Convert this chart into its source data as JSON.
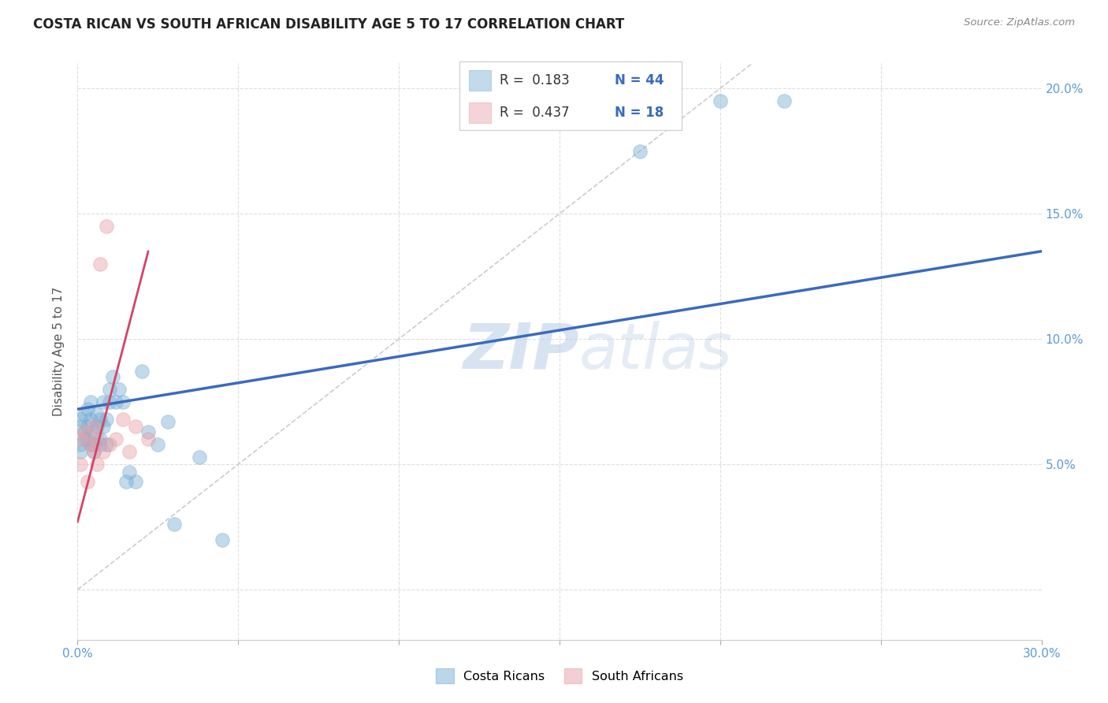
{
  "title": "COSTA RICAN VS SOUTH AFRICAN DISABILITY AGE 5 TO 17 CORRELATION CHART",
  "source": "Source: ZipAtlas.com",
  "ylabel": "Disability Age 5 to 17",
  "xlim": [
    0.0,
    0.3
  ],
  "ylim": [
    -0.02,
    0.21
  ],
  "xticks": [
    0.0,
    0.05,
    0.1,
    0.15,
    0.2,
    0.25,
    0.3
  ],
  "yticks": [
    0.0,
    0.05,
    0.1,
    0.15,
    0.2
  ],
  "blue_color": "#7bafd4",
  "pink_color": "#e8a0a8",
  "blue_line_color": "#3a6bbc",
  "pink_line_color": "#d44466",
  "diagonal_color": "#cccccc",
  "watermark_zip": "ZIP",
  "watermark_atlas": "atlas",
  "blue_line_x0": 0.0,
  "blue_line_y0": 0.072,
  "blue_line_x1": 0.3,
  "blue_line_y1": 0.135,
  "pink_line_x0": 0.0,
  "pink_line_y0": 0.027,
  "pink_line_x1": 0.022,
  "pink_line_y1": 0.135,
  "costa_rican_x": [
    0.001,
    0.001,
    0.001,
    0.001,
    0.002,
    0.002,
    0.002,
    0.003,
    0.003,
    0.003,
    0.004,
    0.004,
    0.004,
    0.005,
    0.005,
    0.005,
    0.006,
    0.006,
    0.007,
    0.007,
    0.007,
    0.008,
    0.008,
    0.009,
    0.009,
    0.01,
    0.01,
    0.011,
    0.012,
    0.013,
    0.014,
    0.015,
    0.016,
    0.018,
    0.02,
    0.022,
    0.025,
    0.028,
    0.03,
    0.038,
    0.045,
    0.2,
    0.175,
    0.22
  ],
  "costa_rican_y": [
    0.065,
    0.068,
    0.058,
    0.055,
    0.07,
    0.063,
    0.06,
    0.072,
    0.065,
    0.06,
    0.068,
    0.058,
    0.075,
    0.063,
    0.058,
    0.055,
    0.07,
    0.065,
    0.068,
    0.06,
    0.058,
    0.075,
    0.065,
    0.058,
    0.068,
    0.08,
    0.075,
    0.085,
    0.075,
    0.08,
    0.075,
    0.043,
    0.047,
    0.043,
    0.087,
    0.063,
    0.058,
    0.067,
    0.026,
    0.053,
    0.02,
    0.195,
    0.175,
    0.195
  ],
  "south_african_x": [
    0.001,
    0.001,
    0.002,
    0.003,
    0.004,
    0.005,
    0.005,
    0.006,
    0.006,
    0.007,
    0.008,
    0.009,
    0.01,
    0.012,
    0.014,
    0.016,
    0.018,
    0.022
  ],
  "south_african_y": [
    0.06,
    0.05,
    0.063,
    0.043,
    0.058,
    0.055,
    0.065,
    0.06,
    0.05,
    0.13,
    0.055,
    0.145,
    0.058,
    0.06,
    0.068,
    0.055,
    0.065,
    0.06
  ]
}
